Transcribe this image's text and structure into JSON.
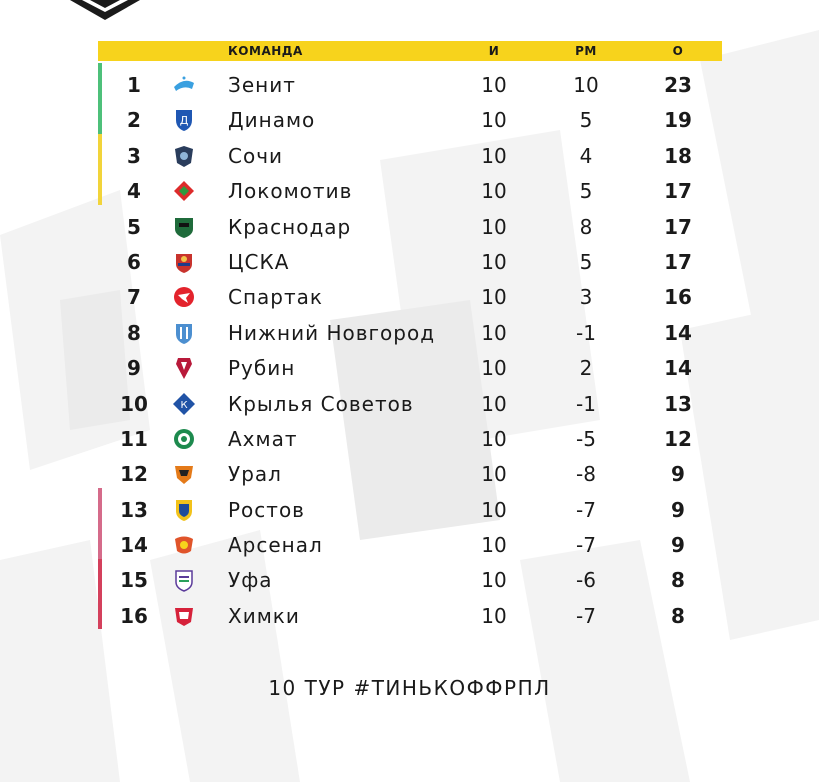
{
  "header": {
    "team": "КОМАНДА",
    "games": "И",
    "diff": "РМ",
    "points": "О"
  },
  "colors": {
    "header_bar": "#f7d31c",
    "zone_champions": "#4dc07a",
    "zone_europe": "#f2d43a",
    "zone_playoff": "#d56b8a",
    "zone_relegation": "#d4405c"
  },
  "rows": [
    {
      "pos": "1",
      "team": "Зенит",
      "games": "10",
      "diff": "10",
      "points": "23",
      "logo_icon": "zenit-logo-icon"
    },
    {
      "pos": "2",
      "team": "Динамо",
      "games": "10",
      "diff": "5",
      "points": "19",
      "logo_icon": "dinamo-logo-icon"
    },
    {
      "pos": "3",
      "team": "Сочи",
      "games": "10",
      "diff": "4",
      "points": "18",
      "logo_icon": "sochi-logo-icon"
    },
    {
      "pos": "4",
      "team": "Локомотив",
      "games": "10",
      "diff": "5",
      "points": "17",
      "logo_icon": "lokomotiv-logo-icon"
    },
    {
      "pos": "5",
      "team": "Краснодар",
      "games": "10",
      "diff": "8",
      "points": "17",
      "logo_icon": "krasnodar-logo-icon"
    },
    {
      "pos": "6",
      "team": "ЦСКА",
      "games": "10",
      "diff": "5",
      "points": "17",
      "logo_icon": "cska-logo-icon"
    },
    {
      "pos": "7",
      "team": "Спартак",
      "games": "10",
      "diff": "3",
      "points": "16",
      "logo_icon": "spartak-logo-icon"
    },
    {
      "pos": "8",
      "team": "Нижний Новгород",
      "games": "10",
      "diff": "-1",
      "points": "14",
      "logo_icon": "nizhny-novgorod-logo-icon"
    },
    {
      "pos": "9",
      "team": "Рубин",
      "games": "10",
      "diff": "2",
      "points": "14",
      "logo_icon": "rubin-logo-icon"
    },
    {
      "pos": "10",
      "team": "Крылья Советов",
      "games": "10",
      "diff": "-1",
      "points": "13",
      "logo_icon": "krylia-sovetov-logo-icon"
    },
    {
      "pos": "11",
      "team": "Ахмат",
      "games": "10",
      "diff": "-5",
      "points": "12",
      "logo_icon": "akhmat-logo-icon"
    },
    {
      "pos": "12",
      "team": "Урал",
      "games": "10",
      "diff": "-8",
      "points": "9",
      "logo_icon": "ural-logo-icon"
    },
    {
      "pos": "13",
      "team": "Ростов",
      "games": "10",
      "diff": "-7",
      "points": "9",
      "logo_icon": "rostov-logo-icon"
    },
    {
      "pos": "14",
      "team": "Арсенал",
      "games": "10",
      "diff": "-7",
      "points": "9",
      "logo_icon": "arsenal-logo-icon"
    },
    {
      "pos": "15",
      "team": "Уфа",
      "games": "10",
      "diff": "-6",
      "points": "8",
      "logo_icon": "ufa-logo-icon"
    },
    {
      "pos": "16",
      "team": "Химки",
      "games": "10",
      "diff": "-7",
      "points": "8",
      "logo_icon": "khimki-logo-icon"
    }
  ],
  "footer": {
    "caption": "10 ТУР #ТИНЬКОФФРПЛ"
  }
}
